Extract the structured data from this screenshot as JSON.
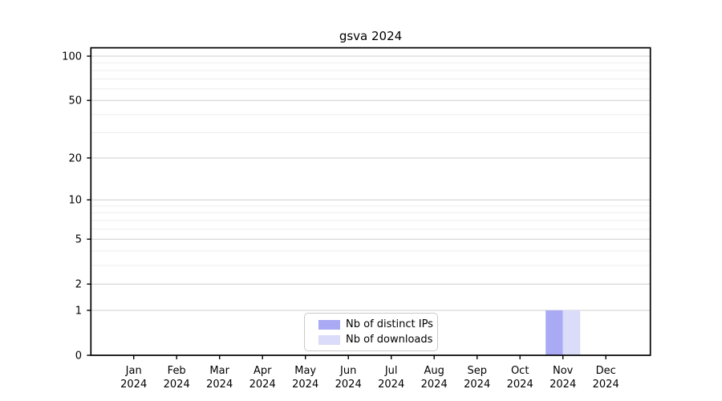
{
  "chart_data": {
    "type": "bar",
    "title": "gsva 2024",
    "categories": [
      "Jan",
      "Feb",
      "Mar",
      "Apr",
      "May",
      "Jun",
      "Jul",
      "Aug",
      "Sep",
      "Oct",
      "Nov",
      "Dec"
    ],
    "category_year": "2024",
    "series": [
      {
        "name": "Nb of distinct IPs",
        "color": "#a9aaf3",
        "values": [
          0,
          0,
          0,
          0,
          0,
          0,
          0,
          0,
          0,
          0,
          1,
          0
        ]
      },
      {
        "name": "Nb of downloads",
        "color": "#dadcf9",
        "values": [
          0,
          0,
          0,
          0,
          0,
          0,
          0,
          0,
          0,
          0,
          1,
          0
        ]
      }
    ],
    "y_scale": "log1p",
    "y_major_ticks": [
      0,
      1,
      2,
      5,
      10,
      20,
      50,
      100
    ],
    "y_minor_ticks": [
      3,
      4,
      6,
      7,
      8,
      9,
      30,
      40,
      60,
      70,
      80,
      90
    ],
    "ylim": [
      0,
      115
    ],
    "xlabel": "",
    "ylabel": "",
    "grid": true,
    "legend_position": "lower center"
  }
}
